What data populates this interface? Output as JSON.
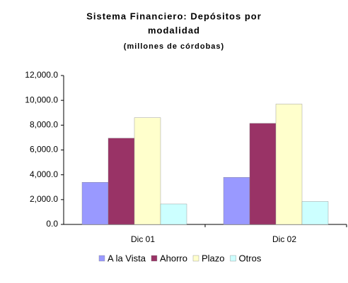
{
  "chart_data": {
    "type": "bar",
    "title": "Sistema Financiero: Depósitos por",
    "title_line2": "modalidad",
    "subtitle": "(millones de córdobas)",
    "categories": [
      "Dic 01",
      "Dic 02"
    ],
    "series": [
      {
        "name": "A la Vista",
        "color": "#9999ff",
        "values": [
          3400,
          3800
        ]
      },
      {
        "name": "Ahorro",
        "color": "#993366",
        "values": [
          6950,
          8150
        ]
      },
      {
        "name": "Plazo",
        "color": "#ffffcc",
        "values": [
          8600,
          9700
        ]
      },
      {
        "name": "Otros",
        "color": "#ccffff",
        "values": [
          1650,
          1850
        ]
      }
    ],
    "ylim": [
      0,
      12000
    ],
    "yticks": [
      {
        "value": 0,
        "label": "0.0"
      },
      {
        "value": 2000,
        "label": "2,000.0"
      },
      {
        "value": 4000,
        "label": "4,000.0"
      },
      {
        "value": 6000,
        "label": "6,000.0"
      },
      {
        "value": 8000,
        "label": "8,000.0"
      },
      {
        "value": 10000,
        "label": "10,000.0"
      },
      {
        "value": 12000,
        "label": "12,000.0"
      }
    ],
    "legend": "bottom"
  }
}
